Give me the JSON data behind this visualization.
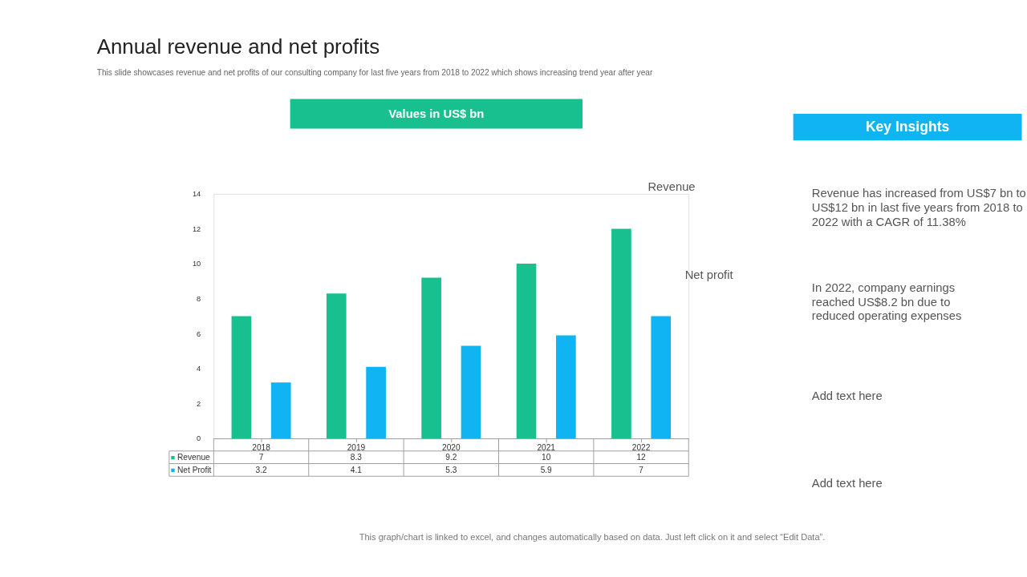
{
  "chart_data": {
    "type": "bar",
    "title": "Annual revenue and net profits",
    "subtitle": "This slide showcases revenue and net profits of our consulting company for last five years from 2018 to 2022 which shows increasing trend year after year",
    "categories": [
      "2018",
      "2019",
      "2020",
      "2021",
      "2022"
    ],
    "series": [
      {
        "name": "Revenue",
        "color": "#18bf8f",
        "values": [
          7,
          8.3,
          9.2,
          10,
          12
        ]
      },
      {
        "name": "Net Profit",
        "color": "#10b4f2",
        "values": [
          3.2,
          4.1,
          5.3,
          5.9,
          7
        ]
      }
    ],
    "ylim": [
      0,
      14
    ],
    "yticks": [
      0,
      2,
      4,
      6,
      8,
      10,
      12,
      14
    ],
    "grid": false,
    "legend": "bottom left",
    "data_labels": true,
    "annotations": [
      "Revenue",
      "Net profit",
      "Values in US$ bn",
      "Key Insights",
      "Revenue has increased from US$7 bn to\nUS$12 bn in last five years from 2018 to\n2022 with a CAGR of 11.38%",
      "In 2022, company earnings\nreached US$8.2 bn due to\nreduced operating expenses",
      "Add text here",
      "Add text here",
      "This graph/chart is linked to excel,  and changes automatically based on data. Just left click on it and select “Edit Data”."
    ]
  }
}
